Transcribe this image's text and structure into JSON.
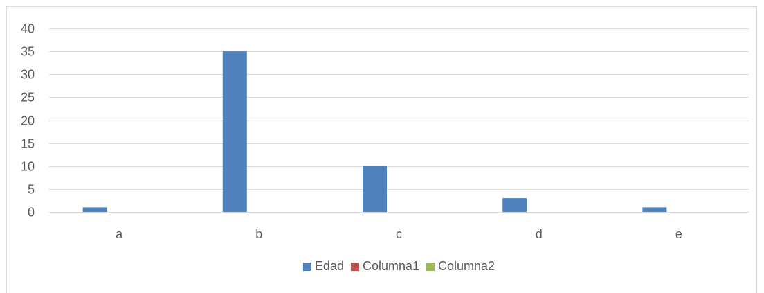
{
  "chart_data": {
    "type": "bar",
    "categories": [
      "a",
      "b",
      "c",
      "d",
      "e"
    ],
    "series": [
      {
        "name": "Edad",
        "values": [
          1,
          35,
          10,
          3,
          1
        ],
        "color": "#4f81bd"
      },
      {
        "name": "Columna1",
        "values": [
          0,
          0,
          0,
          0,
          0
        ],
        "color": "#c0504d"
      },
      {
        "name": "Columna2",
        "values": [
          0,
          0,
          0,
          0,
          0
        ],
        "color": "#9bbb59"
      }
    ],
    "ylim": [
      0,
      40
    ],
    "yticks": [
      0,
      5,
      10,
      15,
      20,
      25,
      30,
      35,
      40
    ],
    "grid": true,
    "legend_position": "bottom"
  }
}
